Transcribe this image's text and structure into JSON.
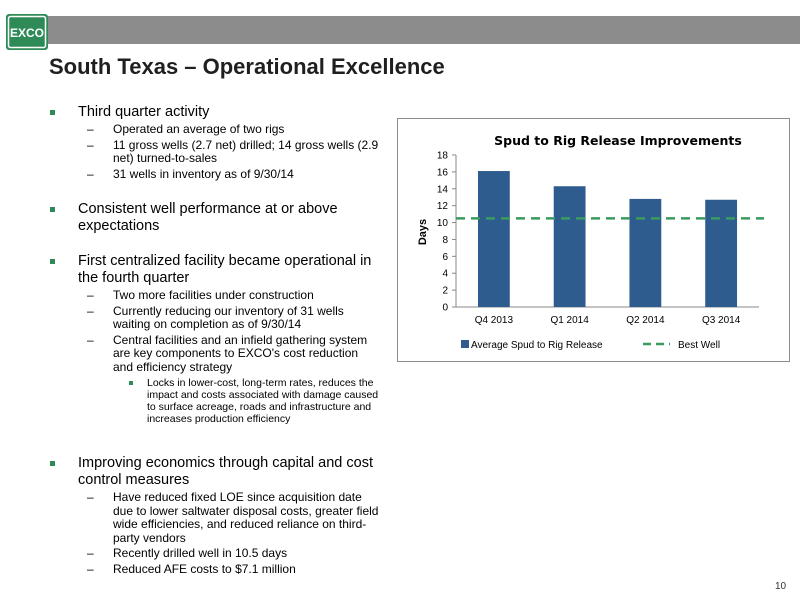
{
  "header": {
    "logo_text": "EXCO",
    "title": "South Texas – Operational Excellence"
  },
  "bullets": {
    "b1": "Third quarter activity",
    "b1_sub": [
      "Operated an average of two rigs",
      "11 gross wells (2.7 net) drilled; 14  gross wells (2.9 net) turned-to-sales",
      "31 wells in inventory as of 9/30/14"
    ],
    "b2": "Consistent well performance at or above expectations",
    "b3": "First centralized facility became operational in the fourth quarter",
    "b3_sub": [
      "Two more facilities under construction",
      "Currently reducing our inventory of 31 wells waiting on completion as of 9/30/14",
      "Central facilities and an infield gathering system are key components to EXCO's cost reduction and efficiency strategy"
    ],
    "b3_sub_sub": "Locks in lower-cost, long-term rates, reduces the impact and costs associated with damage caused to surface acreage, roads and infrastructure and increases production efficiency",
    "b4": "Improving economics through capital and cost control measures",
    "b4_sub": [
      "Have reduced fixed LOE since acquisition date due to lower saltwater disposal costs, greater field wide efficiencies, and reduced reliance on third-party vendors",
      "Recently drilled well in 10.5 days",
      "Reduced AFE costs to $7.1 million"
    ],
    "dash": "–"
  },
  "chart_data": {
    "type": "bar",
    "title": "Spud to Rig Release Improvements",
    "ylabel": "Days",
    "xlabel": "",
    "categories": [
      "Q4 2013",
      "Q1 2014",
      "Q2 2014",
      "Q3 2014"
    ],
    "series": [
      {
        "name": "Average Spud to Rig Release",
        "values": [
          16.1,
          14.3,
          12.8,
          12.7
        ],
        "color": "#2e5c8f"
      }
    ],
    "reference_line": {
      "name": "Best Well",
      "value": 10.5,
      "color": "#3a9a5f",
      "style": "dashed"
    },
    "ylim": [
      0,
      18
    ],
    "yticks": [
      0,
      2,
      4,
      6,
      8,
      10,
      12,
      14,
      16,
      18
    ],
    "legend": "bottom",
    "grid": false
  },
  "footer": {
    "page_number": "10"
  }
}
